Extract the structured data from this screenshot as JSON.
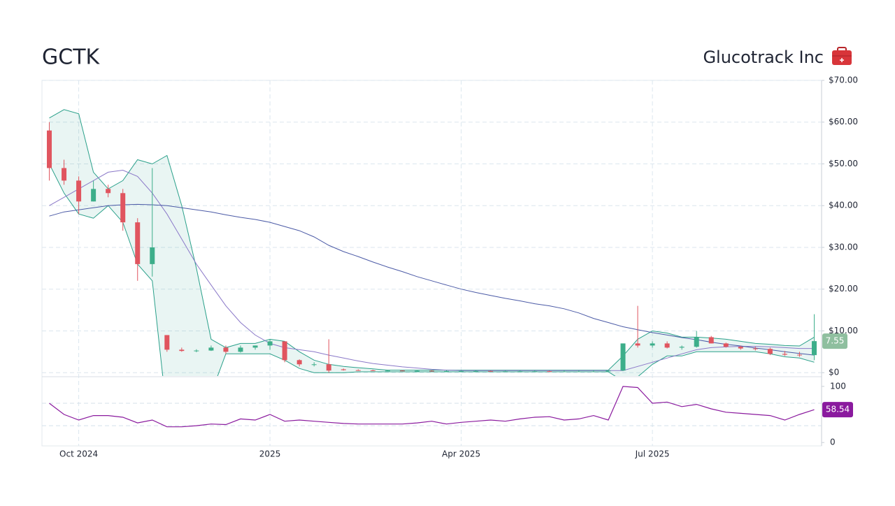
{
  "chart_data": [
    {
      "type": "candlestick",
      "title": "GCTK",
      "subtitle": "Glucotrack Inc",
      "categories": [
        null,
        null,
        "Oct 2024",
        null,
        null,
        null,
        null,
        null,
        null,
        null,
        null,
        null,
        null,
        null,
        null,
        "2025",
        null,
        null,
        null,
        null,
        null,
        null,
        null,
        null,
        null,
        null,
        null,
        null,
        "Apr 2025",
        null,
        null,
        null,
        null,
        null,
        null,
        null,
        null,
        null,
        null,
        null,
        null,
        "Jul 2025",
        null,
        null,
        null,
        null,
        null,
        null,
        null,
        null,
        null,
        null,
        null
      ],
      "open": [
        58,
        49,
        46,
        41,
        44,
        43,
        36,
        26,
        9,
        5.5,
        5.2,
        5.3,
        6,
        5,
        6,
        6.5,
        7.5,
        3,
        2,
        2,
        0.8,
        0.6,
        0.55,
        0.5,
        0.5,
        0.45,
        0.45,
        0.4,
        0.4,
        0.4,
        0.4,
        0.35,
        0.35,
        0.35,
        0.35,
        0.3,
        0.3,
        0.3,
        0.3,
        0.5,
        7,
        6.5,
        7,
        6,
        6.2,
        8.5,
        7,
        6.2,
        5.8,
        5.7,
        4.5,
        4.3,
        4.2
      ],
      "high": [
        60,
        51,
        47,
        46,
        45,
        44,
        37,
        49,
        9,
        6,
        5.6,
        6.5,
        6.5,
        6.5,
        6.5,
        8,
        7.5,
        3.2,
        2.5,
        8,
        1,
        0.8,
        0.7,
        0.7,
        0.6,
        0.6,
        0.6,
        0.6,
        0.5,
        0.6,
        0.5,
        0.5,
        0.5,
        0.5,
        0.5,
        0.5,
        0.5,
        0.5,
        0.5,
        7,
        16,
        7.5,
        7.5,
        6.5,
        10,
        8.8,
        7.2,
        6.5,
        6.2,
        6,
        5.2,
        5,
        14
      ],
      "low": [
        46,
        45,
        38,
        41,
        42,
        34,
        22,
        23,
        5,
        5,
        4.9,
        5.2,
        4.5,
        4.8,
        5.5,
        5.5,
        2.5,
        1.5,
        1.5,
        0,
        0.5,
        0.5,
        0.45,
        0.4,
        0.4,
        0.4,
        0.35,
        0.35,
        0.35,
        0.3,
        0.3,
        0.3,
        0.3,
        0.3,
        0.25,
        0.25,
        0.25,
        0.25,
        0.25,
        0.4,
        6,
        6,
        5.8,
        5.5,
        6,
        7,
        6,
        5.5,
        5.3,
        4.2,
        4,
        3.8,
        3
      ],
      "close": [
        49,
        46,
        41,
        44,
        43,
        36,
        26,
        30,
        5.5,
        5.2,
        5.3,
        6,
        5,
        6,
        6.5,
        7.5,
        3,
        2,
        2,
        0.5,
        0.6,
        0.55,
        0.5,
        0.5,
        0.45,
        0.45,
        0.4,
        0.4,
        0.4,
        0.4,
        0.35,
        0.35,
        0.35,
        0.35,
        0.3,
        0.3,
        0.3,
        0.3,
        0.5,
        7,
        6.5,
        7,
        6,
        6.2,
        8.5,
        7,
        6.2,
        5.8,
        5.7,
        4.5,
        4.3,
        4.2,
        7.55
      ],
      "last_value_label": "7.55",
      "up_color": "#3dae8a",
      "down_color": "#e0555f",
      "bands": {
        "color": "#2aa08a",
        "fill": "rgba(42,160,138,0.10)",
        "upper": [
          61,
          63,
          62,
          48,
          44,
          46,
          51,
          50,
          52,
          40,
          25,
          8,
          6,
          7,
          7,
          8,
          7.5,
          5,
          3,
          2,
          1.5,
          1.2,
          0.9,
          0.6,
          0.6,
          0.6,
          0.6,
          0.6,
          0.6,
          0.6,
          0.6,
          0.6,
          0.6,
          0.6,
          0.6,
          0.6,
          0.6,
          0.6,
          0.6,
          4,
          8,
          10,
          9.5,
          8.5,
          8.5,
          8.3,
          8,
          7.5,
          7,
          6.8,
          6.5,
          6.4,
          8.5
        ],
        "lower": [
          50,
          43,
          38,
          37,
          40,
          36,
          26,
          22,
          -10,
          -20,
          -15,
          -5,
          4.5,
          4.5,
          4.5,
          4.5,
          3,
          1,
          0,
          0,
          0,
          0.2,
          0.2,
          0.2,
          0.2,
          0.2,
          0.2,
          0.2,
          0.2,
          0.2,
          0.2,
          0.2,
          0.2,
          0.2,
          0.2,
          0.2,
          0.2,
          0.2,
          0.2,
          -2,
          -1,
          2,
          4,
          4,
          5,
          5,
          5,
          5,
          5,
          4.5,
          3.8,
          3.5,
          2.5
        ]
      },
      "overlays": [
        {
          "color": "#8a78c8",
          "values": [
            40,
            42,
            44,
            46,
            48,
            48.5,
            47,
            43,
            38,
            32,
            26,
            21,
            16,
            12,
            9,
            7,
            6,
            5.5,
            5,
            4.2,
            3.5,
            2.8,
            2.2,
            1.8,
            1.4,
            1.1,
            0.8,
            0.6,
            0.5,
            0.5,
            0.5,
            0.5,
            0.5,
            0.5,
            0.5,
            0.5,
            0.5,
            0.5,
            0.5,
            0.5,
            1.5,
            2.5,
            3.5,
            4.5,
            5.5,
            6,
            6.2,
            6.3,
            6.3,
            6.2,
            6,
            5.8,
            5.8
          ]
        },
        {
          "color": "#4b5aa6",
          "values": [
            37.5,
            38.5,
            39,
            39.5,
            40,
            40.2,
            40.3,
            40.2,
            40,
            39.5,
            39,
            38.5,
            37.8,
            37.2,
            36.7,
            36,
            35,
            34,
            32.5,
            30.5,
            29,
            27.8,
            26.5,
            25.3,
            24.2,
            23,
            22,
            21,
            20,
            19.2,
            18.5,
            17.8,
            17.2,
            16.5,
            16,
            15.3,
            14.3,
            13,
            12,
            11,
            10.3,
            9.6,
            9,
            8.4,
            7.9,
            7.3,
            6.8,
            6.4,
            5.9,
            5.5,
            5,
            4.6,
            4.2
          ]
        }
      ],
      "ylim": [
        -0.8,
        70
      ],
      "yticks": [
        {
          "value": 0,
          "label": "$0"
        },
        {
          "value": 10,
          "label": "$10.00"
        },
        {
          "value": 20,
          "label": "$20.00"
        },
        {
          "value": 30,
          "label": "$30.00"
        },
        {
          "value": 40,
          "label": "$40.00"
        },
        {
          "value": 50,
          "label": "$50.00"
        },
        {
          "value": 60,
          "label": "$60.00"
        },
        {
          "value": 70,
          "label": "$70.00"
        }
      ],
      "grid": true
    },
    {
      "type": "line",
      "values": [
        70,
        50,
        40,
        48,
        48,
        45,
        35,
        40,
        28,
        28,
        30,
        33,
        32,
        42,
        40,
        50,
        38,
        40,
        38,
        36,
        34,
        33,
        33,
        33,
        33,
        35,
        38,
        33,
        36,
        38,
        40,
        38,
        42,
        45,
        46,
        40,
        42,
        48,
        40,
        100,
        98,
        70,
        72,
        64,
        68,
        60,
        54,
        52,
        50,
        48,
        40,
        50,
        58.54
      ],
      "last_value_label": "58.54",
      "color": "#8a1a9e",
      "reference_lines": [
        30,
        70
      ],
      "ylim": [
        -6,
        116
      ],
      "yticks": [
        0,
        100
      ]
    }
  ]
}
